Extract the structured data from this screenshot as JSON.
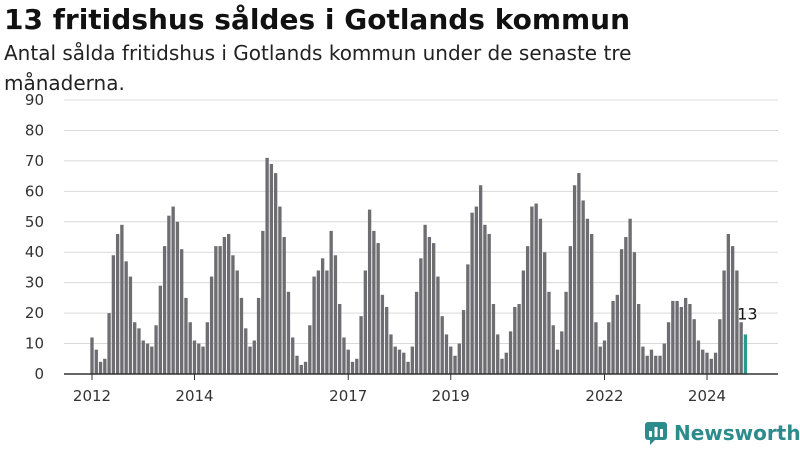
{
  "title": "13 fritidshus såldes i Gotlands kommun",
  "subtitle": "Antal sålda fritidshus i Gotlands kommun under de senaste tre månaderna.",
  "brand": {
    "name": "Newsworthy",
    "color": "#2e8b8b",
    "icon": "newsworthy-logo-icon"
  },
  "colors": {
    "bar": "#6d6d72",
    "highlight": "#2a9a8e",
    "grid": "#d9d9d9",
    "axis": "#333333"
  },
  "chart_data": {
    "type": "bar",
    "title": "13 fritidshus såldes i Gotlands kommun",
    "xlabel": "",
    "ylabel": "",
    "ylim": [
      0,
      90
    ],
    "yticks": [
      "0",
      "10",
      "20",
      "30",
      "40",
      "50",
      "60",
      "70",
      "80",
      "90"
    ],
    "xticks": [
      "2012",
      "2014",
      "2017",
      "2019",
      "2022",
      "2024"
    ],
    "grid": true,
    "highlight_label": "13",
    "series": [
      {
        "values": [
          12,
          8,
          4,
          5,
          20,
          39,
          46,
          49,
          37,
          32,
          17,
          15,
          11,
          10,
          9,
          16,
          29,
          42,
          52,
          55,
          50,
          41,
          25,
          17,
          11,
          10,
          9,
          17,
          32,
          42,
          42,
          45,
          46,
          39,
          34,
          25,
          15,
          9,
          11,
          25,
          47,
          71,
          69,
          66,
          55,
          45,
          27,
          12,
          6,
          3,
          4,
          16,
          32,
          34,
          38,
          34,
          47,
          39,
          23,
          12,
          8,
          4,
          5,
          19,
          34,
          54,
          47,
          43,
          26,
          22,
          13,
          9,
          8,
          7,
          4,
          9,
          27,
          38,
          49,
          45,
          43,
          32,
          19,
          13,
          9,
          6,
          10,
          21,
          36,
          53,
          55,
          62,
          49,
          46,
          23,
          13,
          5,
          7,
          14,
          22,
          23,
          34,
          42,
          55,
          56,
          51,
          40,
          27,
          16,
          8,
          14,
          27,
          42,
          62,
          66,
          57,
          51,
          46,
          17,
          9,
          11,
          17,
          24,
          26,
          41,
          45,
          51,
          40,
          23,
          9,
          6,
          8,
          6,
          6,
          10,
          17,
          24,
          24,
          22,
          25,
          23,
          18,
          11,
          8,
          7,
          5,
          7,
          18,
          34,
          46,
          42,
          34,
          17,
          13
        ]
      }
    ]
  }
}
